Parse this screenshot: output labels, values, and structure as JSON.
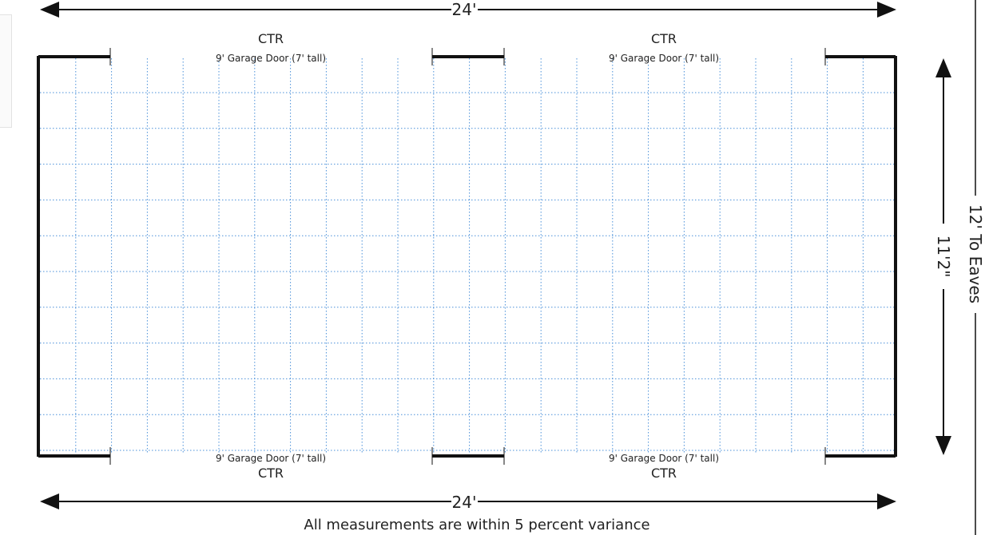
{
  "plan": {
    "width_label": "24'",
    "bottom_width_label": "24'",
    "depth_label": "11'2\"",
    "eaves_label": "12' To Eaves",
    "note": "All measurements are within 5 percent variance"
  },
  "doors": {
    "top_left": {
      "ctr": "CTR",
      "label": "9' Garage Door (7' tall)"
    },
    "top_right": {
      "ctr": "CTR",
      "label": "9' Garage Door (7' tall)"
    },
    "bottom_left": {
      "ctr": "CTR",
      "label": "9' Garage Door (7' tall)"
    },
    "bottom_right": {
      "ctr": "CTR",
      "label": "9' Garage Door (7' tall)"
    }
  },
  "colors": {
    "wall": "#111111",
    "grid": "#4a90d9",
    "text": "#222222"
  }
}
